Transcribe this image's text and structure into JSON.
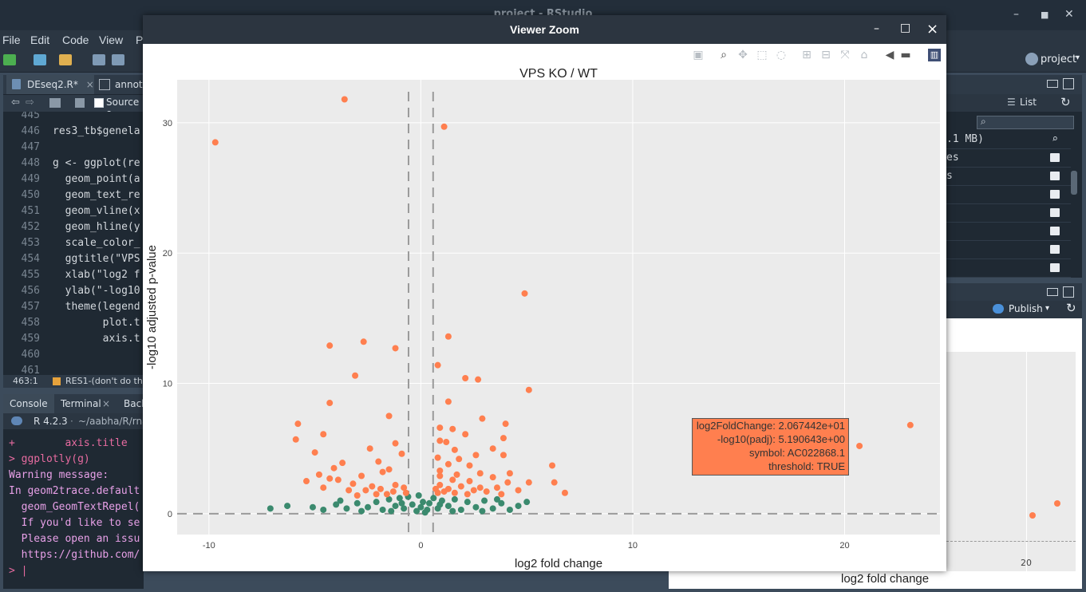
{
  "app": {
    "title": "project - RStudio",
    "menus": [
      "File",
      "Edit",
      "Code",
      "View",
      "P"
    ],
    "project_label": "project"
  },
  "editor": {
    "tabs": [
      "DEseq2.R*",
      "annota"
    ],
    "source_label": "Source o",
    "lines": [
      {
        "n": "445",
        "code": ""
      },
      {
        "n": "446",
        "code": "res3_tb$genela"
      },
      {
        "n": "447",
        "code": ""
      },
      {
        "n": "448",
        "code": "g <- ggplot(re"
      },
      {
        "n": "449",
        "code": "  geom_point(a"
      },
      {
        "n": "450",
        "code": "  geom_text_re"
      },
      {
        "n": "451",
        "code": "  geom_vline(x"
      },
      {
        "n": "452",
        "code": "  geom_hline(y"
      },
      {
        "n": "453",
        "code": "  scale_color_"
      },
      {
        "n": "454",
        "code": "  ggtitle(\"VPS"
      },
      {
        "n": "455",
        "code": "  xlab(\"log2 f"
      },
      {
        "n": "456",
        "code": "  ylab(\"-log10"
      },
      {
        "n": "457",
        "code": "  theme(legend"
      },
      {
        "n": "458",
        "code": "        plot.t"
      },
      {
        "n": "459",
        "code": "        axis.t"
      },
      {
        "n": "460",
        "code": ""
      },
      {
        "n": "461",
        "code": ""
      }
    ],
    "status_pos": "463:1",
    "status_scope": "RES1-(don't do th"
  },
  "console": {
    "tabs": [
      "Console",
      "Terminal",
      "Back"
    ],
    "r_version": "R 4.2.3",
    "path": "~/aabha/R/rna",
    "lines": [
      "+        axis.title",
      "> ggplotly(g)",
      "Warning message:",
      "In geom2trace.default",
      "  geom_GeomTextRepel(",
      "  If you'd like to se",
      "  Please open an issu",
      "  https://github.com/",
      "> |"
    ]
  },
  "environment": {
    "list_label": "List",
    "rows": [
      ".1 MB)",
      "es",
      "s",
      "",
      "",
      "",
      "",
      ""
    ]
  },
  "viewer_pane": {
    "publish_label": "Publish",
    "xlabel": "log2 fold change",
    "tick_20": "20"
  },
  "viewer_zoom": {
    "title": "Viewer Zoom",
    "min_symbol": "–",
    "max_symbol": "□",
    "close_symbol": "×"
  },
  "tooltip": {
    "line1": "log2FoldChange:  2.067442e+01",
    "line2": "-log10(padj):  5.190643e+00",
    "line3": "symbol: AC022868.1",
    "line4": "threshold:  TRUE"
  },
  "colors": {
    "significant": "#ff7f4f",
    "not_significant": "#3b8a6e",
    "panel_bg": "#ebebeb",
    "window_header": "#2c3540"
  },
  "chart_data": {
    "type": "scatter",
    "title": "VPS KO / WT",
    "xlabel": "log2 fold change",
    "ylabel": "-log10 adjusted p-value",
    "xlim": [
      -11.5,
      24.5
    ],
    "ylim": [
      -1.6,
      33.3
    ],
    "x_ticks": [
      -10,
      0,
      10,
      20
    ],
    "y_ticks": [
      0,
      10,
      20,
      30
    ],
    "grid": true,
    "vlines": [
      -0.58,
      0.58
    ],
    "hline": 0,
    "series": [
      {
        "name": "TRUE",
        "color": "#ff7f4f",
        "points": [
          [
            -3.6,
            31.8
          ],
          [
            1.1,
            29.7
          ],
          [
            -9.7,
            28.5
          ],
          [
            4.9,
            16.9
          ],
          [
            1.3,
            13.6
          ],
          [
            -4.3,
            12.9
          ],
          [
            -2.7,
            13.2
          ],
          [
            -1.2,
            12.7
          ],
          [
            0.8,
            11.4
          ],
          [
            -3.1,
            10.6
          ],
          [
            2.1,
            10.4
          ],
          [
            2.7,
            10.3
          ],
          [
            5.1,
            9.5
          ],
          [
            1.3,
            8.6
          ],
          [
            -4.3,
            8.5
          ],
          [
            -1.5,
            7.5
          ],
          [
            2.9,
            7.3
          ],
          [
            -5.8,
            6.9
          ],
          [
            4.0,
            6.9
          ],
          [
            0.9,
            6.6
          ],
          [
            1.5,
            6.5
          ],
          [
            2.1,
            6.1
          ],
          [
            -4.6,
            6.1
          ],
          [
            3.9,
            5.8
          ],
          [
            -5.9,
            5.7
          ],
          [
            0.9,
            5.6
          ],
          [
            1.2,
            5.5
          ],
          [
            -2.4,
            5.0
          ],
          [
            -1.2,
            5.4
          ],
          [
            3.4,
            5.0
          ],
          [
            1.6,
            4.9
          ],
          [
            -5.0,
            4.7
          ],
          [
            -0.9,
            4.6
          ],
          [
            2.6,
            4.5
          ],
          [
            3.9,
            4.5
          ],
          [
            0.8,
            4.3
          ],
          [
            1.8,
            4.2
          ],
          [
            -2.0,
            4.0
          ],
          [
            -3.7,
            3.9
          ],
          [
            1.3,
            3.8
          ],
          [
            2.3,
            3.7
          ],
          [
            6.2,
            3.7
          ],
          [
            -4.1,
            3.5
          ],
          [
            -1.5,
            3.4
          ],
          [
            0.9,
            3.3
          ],
          [
            -1.8,
            3.2
          ],
          [
            2.8,
            3.1
          ],
          [
            4.2,
            3.1
          ],
          [
            -4.8,
            3.0
          ],
          [
            1.7,
            3.0
          ],
          [
            -2.8,
            2.9
          ],
          [
            0.9,
            2.9
          ],
          [
            3.4,
            2.8
          ],
          [
            -4.3,
            2.7
          ],
          [
            -3.9,
            2.6
          ],
          [
            1.5,
            2.6
          ],
          [
            2.3,
            2.5
          ],
          [
            -5.4,
            2.5
          ],
          [
            4.1,
            2.4
          ],
          [
            5.1,
            2.4
          ],
          [
            6.3,
            2.4
          ],
          [
            -3.2,
            2.3
          ],
          [
            -1.2,
            2.2
          ],
          [
            0.9,
            2.2
          ],
          [
            1.9,
            2.1
          ],
          [
            -2.3,
            2.1
          ],
          [
            2.8,
            2.0
          ],
          [
            -4.6,
            2.0
          ],
          [
            3.6,
            2.0
          ],
          [
            -0.8,
            2.0
          ],
          [
            0.7,
            1.9
          ],
          [
            1.3,
            1.9
          ],
          [
            -1.9,
            1.9
          ],
          [
            2.5,
            1.8
          ],
          [
            4.6,
            1.8
          ],
          [
            -3.4,
            1.8
          ],
          [
            -2.6,
            1.8
          ],
          [
            1.1,
            1.7
          ],
          [
            -1.3,
            1.7
          ],
          [
            3.1,
            1.7
          ],
          [
            -0.7,
            1.6
          ],
          [
            0.8,
            1.6
          ],
          [
            1.6,
            1.6
          ],
          [
            -2.1,
            1.5
          ],
          [
            2.2,
            1.5
          ],
          [
            -1.6,
            1.5
          ],
          [
            3.8,
            1.5
          ],
          [
            -3.0,
            1.4
          ],
          [
            6.8,
            1.6
          ],
          [
            20.7,
            5.2
          ],
          [
            23.1,
            6.8
          ]
        ]
      },
      {
        "name": "FALSE",
        "color": "#3b8a6e",
        "points": [
          [
            -7.1,
            0.4
          ],
          [
            -6.3,
            0.6
          ],
          [
            -5.1,
            0.5
          ],
          [
            -4.6,
            0.3
          ],
          [
            -4.0,
            0.7
          ],
          [
            -3.5,
            0.4
          ],
          [
            -3.0,
            0.8
          ],
          [
            -2.5,
            0.5
          ],
          [
            -2.1,
            0.9
          ],
          [
            -1.8,
            0.3
          ],
          [
            -1.5,
            1.1
          ],
          [
            -1.2,
            0.6
          ],
          [
            -1.0,
            1.2
          ],
          [
            -0.8,
            0.4
          ],
          [
            -0.6,
            1.3
          ],
          [
            -0.4,
            0.7
          ],
          [
            -0.2,
            0.2
          ],
          [
            0.0,
            0.5
          ],
          [
            0.2,
            0.1
          ],
          [
            0.4,
            0.8
          ],
          [
            0.6,
            1.2
          ],
          [
            0.8,
            0.4
          ],
          [
            1.0,
            1.0
          ],
          [
            1.3,
            0.6
          ],
          [
            1.6,
            1.1
          ],
          [
            1.9,
            0.3
          ],
          [
            2.2,
            0.9
          ],
          [
            2.6,
            0.5
          ],
          [
            3.0,
            1.0
          ],
          [
            3.4,
            0.4
          ],
          [
            3.8,
            0.8
          ],
          [
            4.2,
            0.3
          ],
          [
            4.6,
            0.6
          ],
          [
            5.0,
            0.9
          ],
          [
            -2.8,
            0.2
          ],
          [
            -1.4,
            0.2
          ],
          [
            0.3,
            0.3
          ],
          [
            1.5,
            0.2
          ],
          [
            2.9,
            0.2
          ],
          [
            -0.9,
            0.8
          ],
          [
            0.9,
            0.7
          ],
          [
            -3.8,
            1.0
          ],
          [
            3.6,
            1.1
          ],
          [
            -0.1,
            1.4
          ],
          [
            0.1,
            0.9
          ]
        ]
      }
    ]
  }
}
